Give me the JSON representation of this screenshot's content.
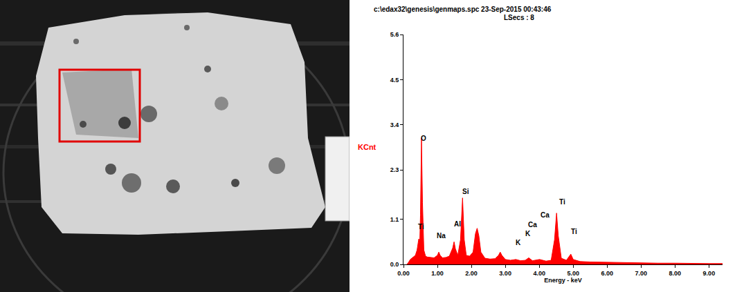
{
  "chart_data": {
    "type": "area",
    "title": "c:\\edax32\\genesis\\genmaps.spc 23-Sep-2015 00:43:46",
    "subtitle": "LSecs : 8",
    "x_label": "Energy - keV",
    "y_label": "KCnt",
    "color": "#ff0000",
    "grid": false,
    "x": [
      0.1,
      0.15,
      0.2,
      0.25,
      0.3,
      0.35,
      0.4,
      0.45,
      0.48,
      0.5,
      0.53,
      0.56,
      0.6,
      0.65,
      0.7,
      0.8,
      0.9,
      1.0,
      1.04,
      1.08,
      1.15,
      1.25,
      1.35,
      1.45,
      1.49,
      1.53,
      1.6,
      1.68,
      1.74,
      1.79,
      1.85,
      1.95,
      2.05,
      2.12,
      2.17,
      2.22,
      2.28,
      2.4,
      2.55,
      2.7,
      2.8,
      2.85,
      2.9,
      3.0,
      3.15,
      3.31,
      3.45,
      3.59,
      3.69,
      3.8,
      4.01,
      4.2,
      4.35,
      4.45,
      4.51,
      4.56,
      4.65,
      4.8,
      4.93,
      5.0,
      5.2,
      5.5,
      6.0,
      6.5,
      7.0,
      7.5,
      8.0,
      8.5,
      9.0,
      9.4
    ],
    "values": [
      0.0,
      0.05,
      0.12,
      0.15,
      0.18,
      0.22,
      0.35,
      0.62,
      0.55,
      1.2,
      3.08,
      1.5,
      0.35,
      0.2,
      0.18,
      0.17,
      0.16,
      0.22,
      0.3,
      0.22,
      0.16,
      0.17,
      0.2,
      0.4,
      0.55,
      0.38,
      0.22,
      0.6,
      1.62,
      0.6,
      0.22,
      0.2,
      0.3,
      0.75,
      0.88,
      0.7,
      0.3,
      0.15,
      0.13,
      0.14,
      0.22,
      0.3,
      0.22,
      0.12,
      0.1,
      0.12,
      0.09,
      0.1,
      0.16,
      0.09,
      0.12,
      0.08,
      0.1,
      0.6,
      1.25,
      0.7,
      0.15,
      0.1,
      0.25,
      0.12,
      0.07,
      0.06,
      0.05,
      0.04,
      0.04,
      0.03,
      0.03,
      0.02,
      0.02,
      0.02
    ],
    "xlim": [
      0,
      9.4
    ],
    "xticks": [
      {
        "value": 0,
        "label": "0.00"
      },
      {
        "value": 1,
        "label": "1.00"
      },
      {
        "value": 2,
        "label": "2.00"
      },
      {
        "value": 3,
        "label": "3.00"
      },
      {
        "value": 4,
        "label": "4.00"
      },
      {
        "value": 5,
        "label": "5.00"
      },
      {
        "value": 6,
        "label": "6.00"
      },
      {
        "value": 7,
        "label": "7.00"
      },
      {
        "value": 8,
        "label": "8.00"
      },
      {
        "value": 9,
        "label": "9.00"
      }
    ],
    "ylim": [
      0,
      5.6
    ],
    "yticks": [
      {
        "value": 0,
        "label": "0.0"
      },
      1.1,
      2.3,
      3.4,
      4.5,
      5.6
    ],
    "annotations": [
      {
        "text": "Ti",
        "x": 0.51,
        "y": 0.79
      },
      {
        "text": "O",
        "x": 0.59,
        "y": 2.95
      },
      {
        "text": "Na",
        "x": 1.12,
        "y": 0.58
      },
      {
        "text": "Al",
        "x": 1.6,
        "y": 0.86
      },
      {
        "text": "Si",
        "x": 1.83,
        "y": 1.65
      },
      {
        "text": "K",
        "x": 3.39,
        "y": 0.41
      },
      {
        "text": "K",
        "x": 3.68,
        "y": 0.63
      },
      {
        "text": "Ca",
        "x": 3.8,
        "y": 0.84
      },
      {
        "text": "Ca",
        "x": 4.17,
        "y": 1.07
      },
      {
        "text": "Ti",
        "x": 4.67,
        "y": 1.4
      },
      {
        "text": "Ti",
        "x": 5.02,
        "y": 0.68
      }
    ]
  }
}
